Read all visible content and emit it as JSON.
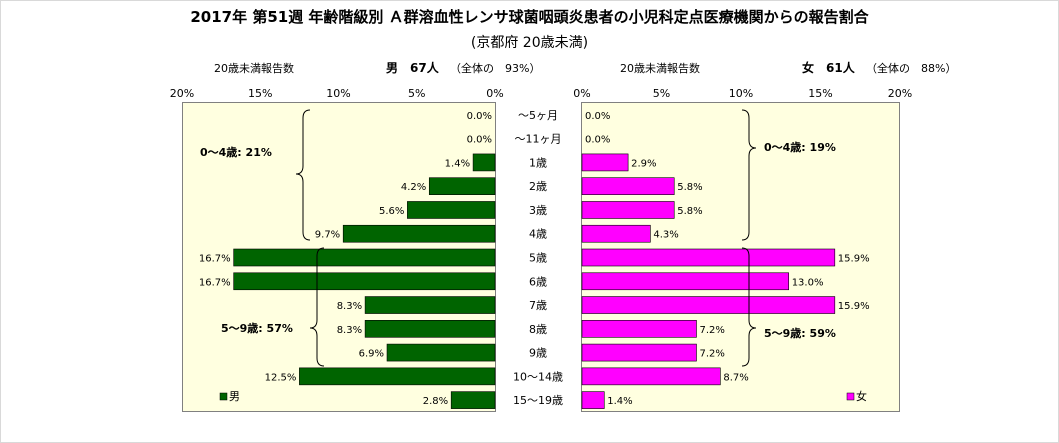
{
  "title": "2017年 第51週 年齢階級別 Ａ群溶血性レンサ球菌咽頭炎患者の小児科定点医療機関からの報告割合",
  "subtitle": "(京都府 20歳未満)",
  "male_header": {
    "under20_label": "20歳未満報告数",
    "name": "男",
    "count": "67人",
    "share": "（全体の　93%）"
  },
  "female_header": {
    "under20_label": "20歳未満報告数",
    "name": "女",
    "count": "61人",
    "share": "（全体の　88%）"
  },
  "brackets": {
    "male_0_4": "0～4歳: 21%",
    "male_5_9": "5～9歳: 57%",
    "female_0_4": "0～4歳: 19%",
    "female_5_9": "5～9歳: 59%"
  },
  "chart_data": {
    "type": "bar",
    "orientation": "horizontal-pyramid",
    "categories": [
      "～5ヶ月",
      "～11ヶ月",
      "1歳",
      "2歳",
      "3歳",
      "4歳",
      "5歳",
      "6歳",
      "7歳",
      "8歳",
      "9歳",
      "10～14歳",
      "15～19歳"
    ],
    "series": [
      {
        "name": "男",
        "values": [
          0.0,
          0.0,
          1.4,
          4.2,
          5.6,
          9.7,
          16.7,
          16.7,
          8.3,
          8.3,
          6.9,
          12.5,
          2.8
        ],
        "labels": [
          "0.0%",
          "0.0%",
          "1.4%",
          "4.2%",
          "5.6%",
          "9.7%",
          "16.7%",
          "16.7%",
          "8.3%",
          "8.3%",
          "6.9%",
          "12.5%",
          "2.8%"
        ],
        "color": "#006400"
      },
      {
        "name": "女",
        "values": [
          0.0,
          0.0,
          2.9,
          5.8,
          5.8,
          4.3,
          15.9,
          13.0,
          15.9,
          7.2,
          7.2,
          8.7,
          1.4
        ],
        "labels": [
          "0.0%",
          "0.0%",
          "2.9%",
          "5.8%",
          "5.8%",
          "4.3%",
          "15.9%",
          "13.0%",
          "15.9%",
          "7.2%",
          "7.2%",
          "8.7%",
          "1.4%"
        ],
        "color": "#FF00FF"
      }
    ],
    "xlim": [
      0,
      20
    ],
    "ticks": [
      0,
      5,
      10,
      15,
      20
    ],
    "tick_labels_male": [
      "0%",
      "5%",
      "10%",
      "15%",
      "20%"
    ],
    "tick_labels_female": [
      "0%",
      "5%",
      "10%",
      "15%",
      "20%"
    ],
    "legend_male": "男",
    "legend_female": "女",
    "legend_placement": "bottom-left / bottom-right",
    "grid": false
  }
}
